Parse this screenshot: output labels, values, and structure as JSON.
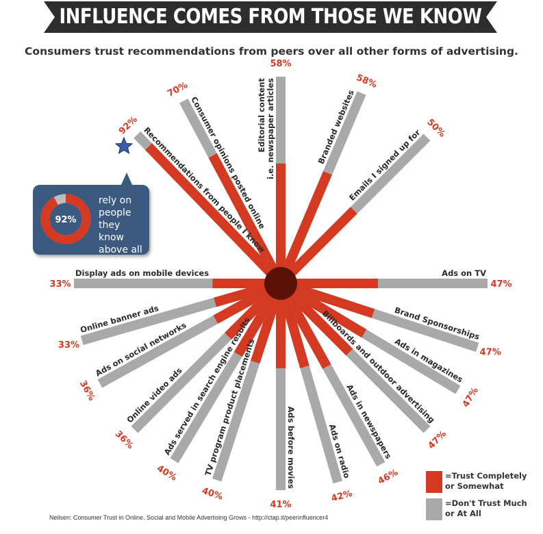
{
  "header": {
    "title": "INFLUENCE COMES FROM THOSE WE KNOW",
    "subtitle": "Consumers trust recommendations from peers over all other forms of advertising."
  },
  "callout": {
    "percent": "92%",
    "value": 92,
    "text": "rely on people they know above all else!"
  },
  "legend": {
    "trust": "=Trust Completely\nor Somewhat",
    "distrust": "=Don't Trust Much\nor At All"
  },
  "source": "Neilsen: Consumer Trust in Online, Social and Mobile Advertising Grows - http://ctap.it/peerinfluencer4",
  "colors": {
    "trust": "#d43a22",
    "distrust": "#a9a9a9",
    "banner": "#2d2d2d",
    "callout": "#3c5a80",
    "hub": "#5a1108"
  },
  "chart_data": {
    "type": "bar",
    "layout": "radial",
    "title": "INFLUENCE COMES FROM THOSE WE KNOW",
    "categories": [
      "Recommendations from people I know",
      "Consumer opinions posted online",
      "Editorial content\ni.e. newspaper articles",
      "Branded websites",
      "Emails I signed up for",
      "Ads on TV",
      "Brand Sponsorships",
      "Ads in magazines",
      "Billboards and outdoor advertising",
      "Ads in newspapers",
      "Ads on radio",
      "Ads before movies",
      "TV program product placements",
      "Ads served in search engine results",
      "Online video ads",
      "Ads on social networks",
      "Online banner ads",
      "Display ads on mobile devices"
    ],
    "series": [
      {
        "name": "=Trust Completely or Somewhat",
        "values": [
          92,
          70,
          58,
          58,
          50,
          47,
          47,
          47,
          47,
          46,
          42,
          41,
          40,
          40,
          36,
          36,
          33,
          33
        ]
      },
      {
        "name": "=Don't Trust Much or At All",
        "values": [
          8,
          30,
          42,
          42,
          50,
          53,
          53,
          53,
          53,
          54,
          58,
          59,
          60,
          60,
          64,
          64,
          67,
          67
        ]
      }
    ],
    "labels": [
      "92%",
      "70%",
      "58%",
      "58%",
      "50%",
      "47%",
      "47%",
      "47%",
      "47%",
      "46%",
      "42%",
      "41%",
      "40%",
      "40%",
      "36%",
      "36%",
      "33%",
      "33%"
    ],
    "ylim": [
      0,
      100
    ]
  }
}
